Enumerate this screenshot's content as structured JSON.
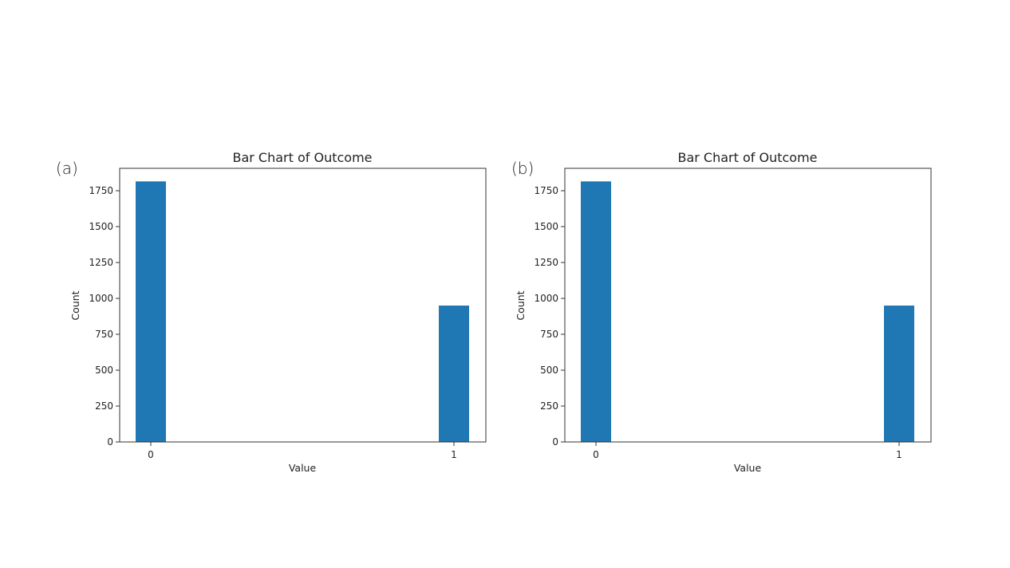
{
  "panels": [
    {
      "label": "(a)"
    },
    {
      "label": "(b)"
    }
  ],
  "colors": {
    "bar": "#1f77b4",
    "axis": "#333333"
  },
  "chart_data": [
    {
      "type": "bar",
      "title": "Bar Chart of Outcome",
      "xlabel": "Value",
      "ylabel": "Count",
      "categories": [
        "0",
        "1"
      ],
      "values": [
        1815,
        950
      ],
      "ylim": [
        0,
        1906
      ],
      "yticks": [
        0,
        250,
        500,
        750,
        1000,
        1250,
        1500,
        1750
      ],
      "grid": false
    },
    {
      "type": "bar",
      "title": "Bar Chart of Outcome",
      "xlabel": "Value",
      "ylabel": "Count",
      "categories": [
        "0",
        "1"
      ],
      "values": [
        1815,
        950
      ],
      "ylim": [
        0,
        1906
      ],
      "yticks": [
        0,
        250,
        500,
        750,
        1000,
        1250,
        1500,
        1750
      ],
      "grid": false
    }
  ]
}
